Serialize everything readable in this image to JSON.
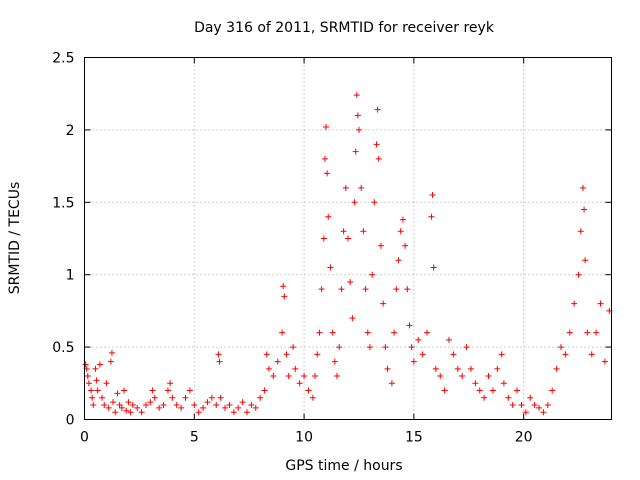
{
  "chart_data": {
    "type": "scatter",
    "title": "Day 316 of 2011, SRMTID for receiver reyk",
    "xlabel": "GPS time / hours",
    "ylabel": "SRMTID / TECUs",
    "xlim": [
      0,
      24
    ],
    "ylim": [
      0,
      2.5
    ],
    "xticks": [
      0,
      5,
      10,
      15,
      20
    ],
    "xtick_labels": [
      "0",
      "5",
      "10",
      "15",
      "20"
    ],
    "yticks": [
      0,
      0.5,
      1,
      1.5,
      2,
      2.5
    ],
    "ytick_labels": [
      "0",
      "0.5",
      "1",
      "1.5",
      "2",
      "2.5"
    ],
    "grid": true,
    "marker": "+",
    "color": "#ff0000",
    "series": [
      {
        "name": "SRMTID",
        "points": [
          [
            0.05,
            0.38
          ],
          [
            0.1,
            0.35
          ],
          [
            0.15,
            0.3
          ],
          [
            0.2,
            0.25
          ],
          [
            0.3,
            0.2
          ],
          [
            0.35,
            0.15
          ],
          [
            0.4,
            0.1
          ],
          [
            0.5,
            0.35
          ],
          [
            0.55,
            0.27
          ],
          [
            0.6,
            0.2
          ],
          [
            0.7,
            0.38
          ],
          [
            0.8,
            0.15
          ],
          [
            0.9,
            0.1
          ],
          [
            1.0,
            0.25
          ],
          [
            1.1,
            0.08
          ],
          [
            1.2,
            0.4
          ],
          [
            1.25,
            0.46
          ],
          [
            1.3,
            0.12
          ],
          [
            1.4,
            0.05
          ],
          [
            1.5,
            0.18
          ],
          [
            1.6,
            0.1
          ],
          [
            1.7,
            0.08
          ],
          [
            1.8,
            0.2
          ],
          [
            1.9,
            0.06
          ],
          [
            2.0,
            0.12
          ],
          [
            2.1,
            0.05
          ],
          [
            2.2,
            0.1
          ],
          [
            2.4,
            0.08
          ],
          [
            2.6,
            0.05
          ],
          [
            2.8,
            0.1
          ],
          [
            3.0,
            0.12
          ],
          [
            3.1,
            0.2
          ],
          [
            3.2,
            0.15
          ],
          [
            3.4,
            0.08
          ],
          [
            3.6,
            0.1
          ],
          [
            3.8,
            0.2
          ],
          [
            3.9,
            0.25
          ],
          [
            4.0,
            0.15
          ],
          [
            4.2,
            0.1
          ],
          [
            4.4,
            0.08
          ],
          [
            4.6,
            0.15
          ],
          [
            4.8,
            0.2
          ],
          [
            5.0,
            0.1
          ],
          [
            5.2,
            0.05
          ],
          [
            5.4,
            0.08
          ],
          [
            5.6,
            0.12
          ],
          [
            5.8,
            0.15
          ],
          [
            6.0,
            0.1
          ],
          [
            6.1,
            0.45
          ],
          [
            6.15,
            0.4
          ],
          [
            6.2,
            0.15
          ],
          [
            6.4,
            0.08
          ],
          [
            6.6,
            0.1
          ],
          [
            6.8,
            0.05
          ],
          [
            7.0,
            0.08
          ],
          [
            7.2,
            0.12
          ],
          [
            7.4,
            0.05
          ],
          [
            7.6,
            0.1
          ],
          [
            7.8,
            0.08
          ],
          [
            8.0,
            0.15
          ],
          [
            8.2,
            0.2
          ],
          [
            8.3,
            0.45
          ],
          [
            8.4,
            0.35
          ],
          [
            8.6,
            0.3
          ],
          [
            8.8,
            0.4
          ],
          [
            9.0,
            0.6
          ],
          [
            9.05,
            0.92
          ],
          [
            9.1,
            0.85
          ],
          [
            9.2,
            0.45
          ],
          [
            9.3,
            0.3
          ],
          [
            9.5,
            0.5
          ],
          [
            9.6,
            0.35
          ],
          [
            9.8,
            0.25
          ],
          [
            10.0,
            0.3
          ],
          [
            10.2,
            0.2
          ],
          [
            10.4,
            0.15
          ],
          [
            10.5,
            0.3
          ],
          [
            10.6,
            0.45
          ],
          [
            10.7,
            0.6
          ],
          [
            10.8,
            0.9
          ],
          [
            10.9,
            1.25
          ],
          [
            10.95,
            1.8
          ],
          [
            11.0,
            2.02
          ],
          [
            11.05,
            1.7
          ],
          [
            11.1,
            1.4
          ],
          [
            11.2,
            1.05
          ],
          [
            11.3,
            0.6
          ],
          [
            11.4,
            0.4
          ],
          [
            11.5,
            0.3
          ],
          [
            11.6,
            0.5
          ],
          [
            11.7,
            0.9
          ],
          [
            11.8,
            1.3
          ],
          [
            11.9,
            1.6
          ],
          [
            12.0,
            1.25
          ],
          [
            12.1,
            0.95
          ],
          [
            12.2,
            0.7
          ],
          [
            12.3,
            1.5
          ],
          [
            12.35,
            1.85
          ],
          [
            12.4,
            2.24
          ],
          [
            12.45,
            2.1
          ],
          [
            12.5,
            2.0
          ],
          [
            12.6,
            1.6
          ],
          [
            12.7,
            1.3
          ],
          [
            12.8,
            0.9
          ],
          [
            12.9,
            0.6
          ],
          [
            13.0,
            0.5
          ],
          [
            13.1,
            1.0
          ],
          [
            13.2,
            1.5
          ],
          [
            13.3,
            1.9
          ],
          [
            13.35,
            2.14
          ],
          [
            13.4,
            1.8
          ],
          [
            13.5,
            1.2
          ],
          [
            13.6,
            0.8
          ],
          [
            13.7,
            0.5
          ],
          [
            13.8,
            0.35
          ],
          [
            14.0,
            0.25
          ],
          [
            14.1,
            0.6
          ],
          [
            14.2,
            0.9
          ],
          [
            14.3,
            1.1
          ],
          [
            14.4,
            1.3
          ],
          [
            14.5,
            1.38
          ],
          [
            14.6,
            1.2
          ],
          [
            14.7,
            0.9
          ],
          [
            14.8,
            0.65
          ],
          [
            14.9,
            0.5
          ],
          [
            15.0,
            0.4
          ],
          [
            15.2,
            0.55
          ],
          [
            15.4,
            0.45
          ],
          [
            15.6,
            0.6
          ],
          [
            15.8,
            1.4
          ],
          [
            15.85,
            1.55
          ],
          [
            15.9,
            1.05
          ],
          [
            16.0,
            0.35
          ],
          [
            16.2,
            0.3
          ],
          [
            16.4,
            0.2
          ],
          [
            16.6,
            0.55
          ],
          [
            16.8,
            0.45
          ],
          [
            17.0,
            0.35
          ],
          [
            17.2,
            0.3
          ],
          [
            17.4,
            0.5
          ],
          [
            17.6,
            0.35
          ],
          [
            17.8,
            0.25
          ],
          [
            18.0,
            0.2
          ],
          [
            18.2,
            0.15
          ],
          [
            18.4,
            0.3
          ],
          [
            18.6,
            0.2
          ],
          [
            18.8,
            0.35
          ],
          [
            19.0,
            0.45
          ],
          [
            19.1,
            0.25
          ],
          [
            19.3,
            0.15
          ],
          [
            19.5,
            0.1
          ],
          [
            19.7,
            0.2
          ],
          [
            19.9,
            0.1
          ],
          [
            20.1,
            0.05
          ],
          [
            20.3,
            0.15
          ],
          [
            20.5,
            0.1
          ],
          [
            20.7,
            0.08
          ],
          [
            20.9,
            0.05
          ],
          [
            21.1,
            0.1
          ],
          [
            21.3,
            0.2
          ],
          [
            21.5,
            0.35
          ],
          [
            21.7,
            0.5
          ],
          [
            21.9,
            0.45
          ],
          [
            22.1,
            0.6
          ],
          [
            22.3,
            0.8
          ],
          [
            22.5,
            1.0
          ],
          [
            22.6,
            1.3
          ],
          [
            22.7,
            1.6
          ],
          [
            22.75,
            1.45
          ],
          [
            22.8,
            1.1
          ],
          [
            22.9,
            0.6
          ],
          [
            23.1,
            0.45
          ],
          [
            23.3,
            0.6
          ],
          [
            23.5,
            0.8
          ],
          [
            23.7,
            0.4
          ],
          [
            23.9,
            0.75
          ]
        ]
      }
    ]
  }
}
